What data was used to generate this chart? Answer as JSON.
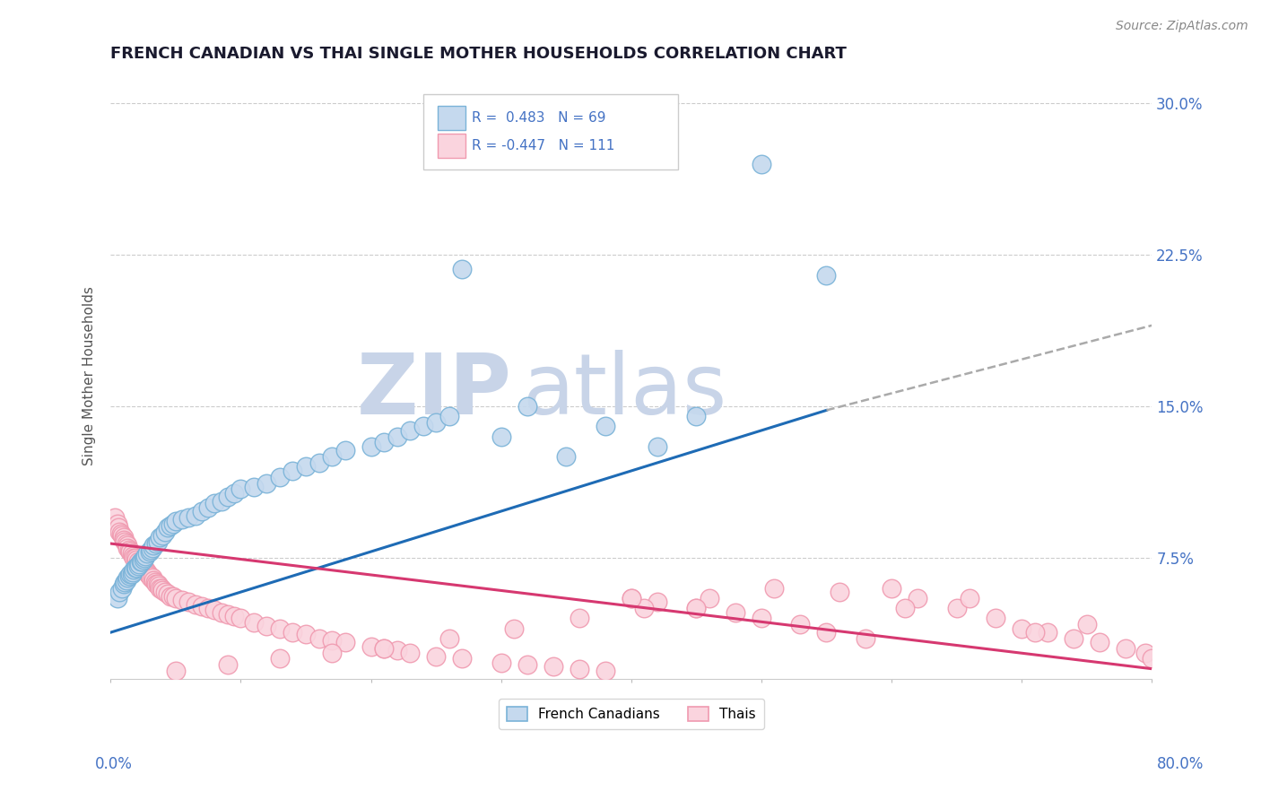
{
  "title": "FRENCH CANADIAN VS THAI SINGLE MOTHER HOUSEHOLDS CORRELATION CHART",
  "source_text": "Source: ZipAtlas.com",
  "ylabel": "Single Mother Households",
  "y_ticks": [
    0.075,
    0.15,
    0.225,
    0.3
  ],
  "y_tick_labels": [
    "7.5%",
    "15.0%",
    "22.5%",
    "30.0%"
  ],
  "xmin": 0.0,
  "xmax": 0.8,
  "ymin": 0.015,
  "ymax": 0.315,
  "blue_color": "#7ab3d8",
  "blue_light": "#c5d9ee",
  "pink_color": "#f09ab0",
  "pink_light": "#fad4de",
  "trend_blue": "#1e6bb5",
  "trend_pink": "#d63870",
  "trend_blue_ext": "#aaaaaa",
  "watermark_zip_color": "#c8d4e8",
  "watermark_atlas_color": "#c8d4e8",
  "legend_text_color": "#4472c4",
  "french_canadians_x": [
    0.005,
    0.007,
    0.009,
    0.01,
    0.011,
    0.012,
    0.013,
    0.014,
    0.015,
    0.016,
    0.017,
    0.018,
    0.019,
    0.02,
    0.021,
    0.022,
    0.023,
    0.024,
    0.025,
    0.026,
    0.027,
    0.028,
    0.03,
    0.031,
    0.032,
    0.033,
    0.035,
    0.036,
    0.038,
    0.04,
    0.042,
    0.044,
    0.046,
    0.048,
    0.05,
    0.055,
    0.06,
    0.065,
    0.07,
    0.075,
    0.08,
    0.085,
    0.09,
    0.095,
    0.1,
    0.11,
    0.12,
    0.13,
    0.14,
    0.15,
    0.16,
    0.17,
    0.18,
    0.2,
    0.21,
    0.22,
    0.23,
    0.24,
    0.25,
    0.26,
    0.27,
    0.3,
    0.32,
    0.35,
    0.38,
    0.42,
    0.45,
    0.5,
    0.55
  ],
  "french_canadians_y": [
    0.055,
    0.058,
    0.06,
    0.062,
    0.063,
    0.064,
    0.065,
    0.066,
    0.067,
    0.067,
    0.068,
    0.069,
    0.07,
    0.07,
    0.071,
    0.072,
    0.073,
    0.073,
    0.074,
    0.075,
    0.076,
    0.077,
    0.078,
    0.079,
    0.08,
    0.081,
    0.082,
    0.083,
    0.085,
    0.086,
    0.088,
    0.09,
    0.091,
    0.092,
    0.093,
    0.094,
    0.095,
    0.096,
    0.098,
    0.1,
    0.102,
    0.103,
    0.105,
    0.107,
    0.109,
    0.11,
    0.112,
    0.115,
    0.118,
    0.12,
    0.122,
    0.125,
    0.128,
    0.13,
    0.132,
    0.135,
    0.138,
    0.14,
    0.142,
    0.145,
    0.218,
    0.135,
    0.15,
    0.125,
    0.14,
    0.13,
    0.145,
    0.27,
    0.215
  ],
  "thais_x": [
    0.003,
    0.005,
    0.006,
    0.007,
    0.008,
    0.009,
    0.01,
    0.01,
    0.011,
    0.012,
    0.013,
    0.013,
    0.014,
    0.015,
    0.015,
    0.016,
    0.017,
    0.018,
    0.019,
    0.02,
    0.021,
    0.022,
    0.023,
    0.024,
    0.025,
    0.026,
    0.027,
    0.028,
    0.029,
    0.03,
    0.031,
    0.032,
    0.033,
    0.034,
    0.035,
    0.036,
    0.037,
    0.038,
    0.039,
    0.04,
    0.042,
    0.044,
    0.046,
    0.048,
    0.05,
    0.055,
    0.06,
    0.065,
    0.07,
    0.075,
    0.08,
    0.085,
    0.09,
    0.095,
    0.1,
    0.11,
    0.12,
    0.13,
    0.14,
    0.15,
    0.16,
    0.17,
    0.18,
    0.2,
    0.21,
    0.22,
    0.23,
    0.25,
    0.27,
    0.3,
    0.32,
    0.34,
    0.36,
    0.38,
    0.4,
    0.42,
    0.45,
    0.48,
    0.5,
    0.53,
    0.55,
    0.58,
    0.6,
    0.62,
    0.65,
    0.68,
    0.7,
    0.72,
    0.74,
    0.76,
    0.78,
    0.795,
    0.8,
    0.75,
    0.71,
    0.66,
    0.61,
    0.56,
    0.51,
    0.46,
    0.41,
    0.36,
    0.31,
    0.26,
    0.21,
    0.17,
    0.13,
    0.09,
    0.05,
    0.4,
    0.45
  ],
  "thais_y": [
    0.095,
    0.092,
    0.09,
    0.088,
    0.087,
    0.086,
    0.085,
    0.084,
    0.083,
    0.082,
    0.081,
    0.08,
    0.079,
    0.078,
    0.078,
    0.077,
    0.076,
    0.075,
    0.075,
    0.074,
    0.073,
    0.072,
    0.072,
    0.071,
    0.07,
    0.069,
    0.069,
    0.068,
    0.067,
    0.066,
    0.065,
    0.065,
    0.064,
    0.063,
    0.062,
    0.062,
    0.061,
    0.06,
    0.06,
    0.059,
    0.058,
    0.057,
    0.056,
    0.056,
    0.055,
    0.054,
    0.053,
    0.052,
    0.051,
    0.05,
    0.049,
    0.048,
    0.047,
    0.046,
    0.045,
    0.043,
    0.041,
    0.04,
    0.038,
    0.037,
    0.035,
    0.034,
    0.033,
    0.031,
    0.03,
    0.029,
    0.028,
    0.026,
    0.025,
    0.023,
    0.022,
    0.021,
    0.02,
    0.019,
    0.055,
    0.053,
    0.05,
    0.048,
    0.045,
    0.042,
    0.038,
    0.035,
    0.06,
    0.055,
    0.05,
    0.045,
    0.04,
    0.038,
    0.035,
    0.033,
    0.03,
    0.028,
    0.025,
    0.042,
    0.038,
    0.055,
    0.05,
    0.058,
    0.06,
    0.055,
    0.05,
    0.045,
    0.04,
    0.035,
    0.03,
    0.028,
    0.025,
    0.022,
    0.019,
    0.055,
    0.05
  ],
  "fc_trend_x0": 0.0,
  "fc_trend_x_solid_end": 0.55,
  "fc_trend_x1": 0.8,
  "fc_trend_y0": 0.038,
  "fc_trend_y_solid_end": 0.148,
  "fc_trend_y1": 0.19,
  "th_trend_x0": 0.0,
  "th_trend_x1": 0.8,
  "th_trend_y0": 0.082,
  "th_trend_y1": 0.02
}
